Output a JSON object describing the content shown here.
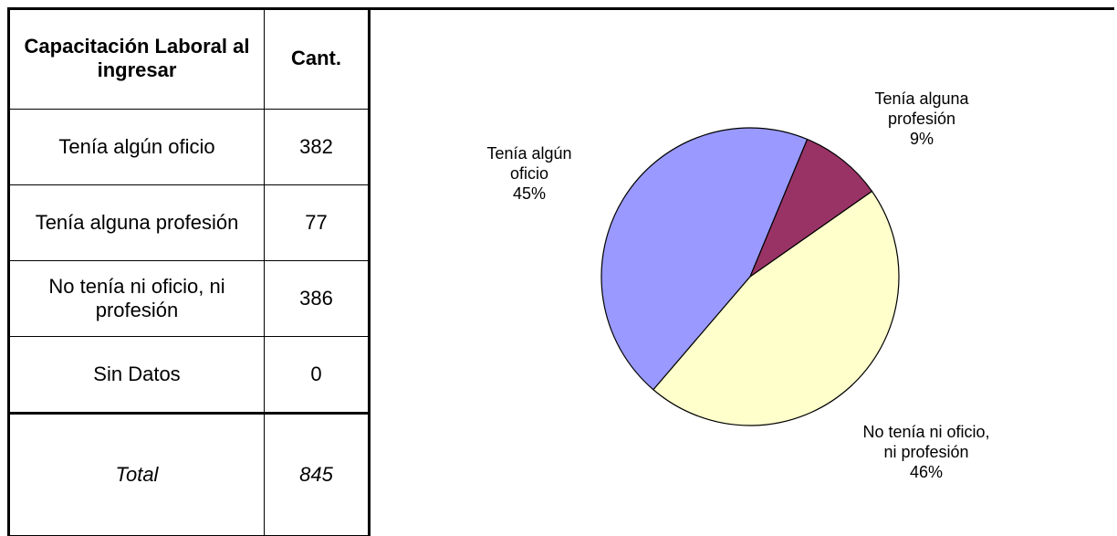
{
  "table": {
    "header": [
      "Capacitación Laboral al ingresar",
      "Cant."
    ],
    "rows": [
      [
        "Tenía algún oficio",
        382
      ],
      [
        "Tenía alguna profesión",
        77
      ],
      [
        "No tenía ni oficio, ni profesión",
        386
      ],
      [
        "Sin Datos",
        0
      ]
    ],
    "total": [
      "Total",
      845
    ]
  },
  "chart_data": {
    "type": "pie",
    "categories": [
      "Tenía algún oficio",
      "Tenía alguna profesión",
      "No tenía ni oficio, ni profesión"
    ],
    "values": [
      45,
      9,
      46
    ],
    "value_labels": [
      "45%",
      "9%",
      "46%"
    ],
    "colors": [
      "#9999ff",
      "#993366",
      "#ffffcc"
    ]
  }
}
